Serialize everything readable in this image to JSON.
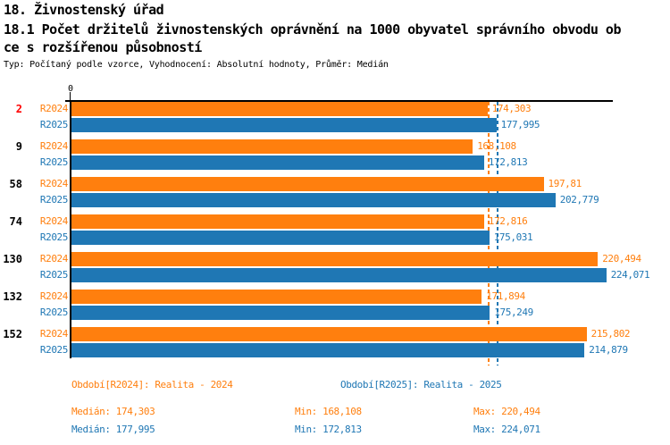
{
  "page": {
    "title": "18. Živnostenský úřad",
    "subtitle_line1": "18.1 Počet držitelů živnostenských oprávnění na 1000 obyvatel správního obvodu ob",
    "subtitle_line2": "ce s rozšířenou působností",
    "meta": "Typ: Počítaný podle vzorce, Vyhodnocení: Absolutní hodnoty, Průměr: Medián"
  },
  "colors": {
    "series_r2024": "#ff7f0e",
    "series_r2025": "#1f77b4",
    "category_highlight": "#ff0000",
    "category_default": "#000000",
    "axis": "#000000"
  },
  "chart_data": {
    "type": "bar",
    "orientation": "horizontal",
    "title": "18.1 Počet držitelů živnostenských oprávnění na 1000 obyvatel správního obvodu obce s rozšířenou působností",
    "axis": {
      "origin_label": "0",
      "xlim": [
        0,
        227
      ],
      "grid": false
    },
    "categories": [
      "2",
      "9",
      "58",
      "74",
      "130",
      "132",
      "152"
    ],
    "series": [
      {
        "name": "R2024",
        "color": "#ff7f0e",
        "values": [
          174.303,
          168.108,
          197.81,
          172.816,
          220.494,
          171.894,
          215.802
        ],
        "value_labels": [
          "174,303",
          "168,108",
          "197,81",
          "172,816",
          "220,494",
          "171,894",
          "215,802"
        ],
        "median": 174.303
      },
      {
        "name": "R2025",
        "color": "#1f77b4",
        "values": [
          177.995,
          172.813,
          202.779,
          175.031,
          224.071,
          175.249,
          214.879
        ],
        "value_labels": [
          "177,995",
          "172,813",
          "202,779",
          "175,031",
          "224,071",
          "175,249",
          "214,879"
        ],
        "median": 177.995
      }
    ],
    "legend_position": "bottom"
  },
  "legend": [
    {
      "label": "Období[R2024]: Realita - 2024",
      "color": "#ff7f0e"
    },
    {
      "label": "Období[R2025]: Realita - 2025",
      "color": "#1f77b4"
    }
  ],
  "stats": {
    "rows": [
      {
        "median": "Medián: 174,303",
        "min": "Min: 168,108",
        "max": "Max: 220,494",
        "color": "#ff7f0e"
      },
      {
        "median": "Medián: 177,995",
        "min": "Min: 172,813",
        "max": "Max: 224,071",
        "color": "#1f77b4"
      }
    ]
  }
}
